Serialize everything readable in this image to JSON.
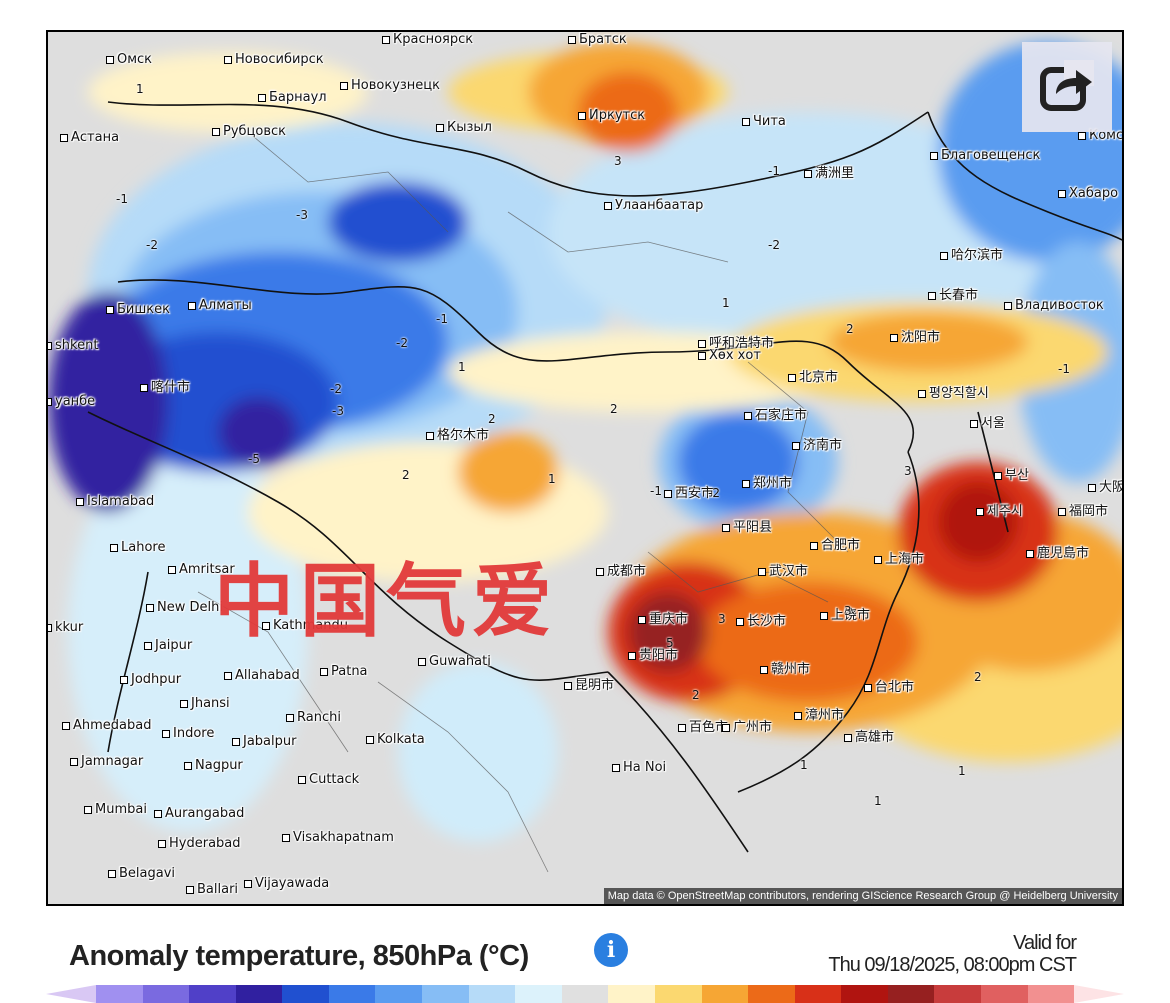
{
  "map": {
    "attribution": "Map data © OpenStreetMap contributors, rendering GIScience Research Group @ Heidelberg University",
    "watermark": "中国气爱",
    "cities": [
      {
        "name": "Омск"
      },
      {
        "name": "Новосибирск"
      },
      {
        "name": "Красноярск"
      },
      {
        "name": "Братск"
      },
      {
        "name": "Барнаул"
      },
      {
        "name": "Новокузнецк"
      },
      {
        "name": "Иркутск"
      },
      {
        "name": "Астана"
      },
      {
        "name": "Рубцовск"
      },
      {
        "name": "Кызыл"
      },
      {
        "name": "Чита"
      },
      {
        "name": "Благовещенск"
      },
      {
        "name": "满洲里"
      },
      {
        "name": "Хабаро"
      },
      {
        "name": "Улаанбаатар"
      },
      {
        "name": "哈尔滨市"
      },
      {
        "name": "长春市"
      },
      {
        "name": "Владивосток"
      },
      {
        "name": "Бишкек"
      },
      {
        "name": "Алматы"
      },
      {
        "name": "shkent"
      },
      {
        "name": "呼和浩特市"
      },
      {
        "name": "Хөх хот"
      },
      {
        "name": "沈阳市"
      },
      {
        "name": "北京市"
      },
      {
        "name": "평양직할시"
      },
      {
        "name": "喀什市"
      },
      {
        "name": "уанбе"
      },
      {
        "name": "石家庄市"
      },
      {
        "name": "格尔木市"
      },
      {
        "name": "济南市"
      },
      {
        "name": "서울"
      },
      {
        "name": "西安市"
      },
      {
        "name": "郑州市"
      },
      {
        "name": "부산"
      },
      {
        "name": "Islamabad"
      },
      {
        "name": "平阳县"
      },
      {
        "name": "제주시"
      },
      {
        "name": "福岡市"
      },
      {
        "name": "Lahore"
      },
      {
        "name": "成都市"
      },
      {
        "name": "合肥市"
      },
      {
        "name": "上海市"
      },
      {
        "name": "鹿児島市"
      },
      {
        "name": "Amritsar"
      },
      {
        "name": "武汉市"
      },
      {
        "name": "重庆市"
      },
      {
        "name": "New Delhi"
      },
      {
        "name": "长沙市"
      },
      {
        "name": "上饶市"
      },
      {
        "name": "Kathmandu"
      },
      {
        "name": "Jaipur"
      },
      {
        "name": "贵阳市"
      },
      {
        "name": "Guwahati"
      },
      {
        "name": "Patna"
      },
      {
        "name": "赣州市"
      },
      {
        "name": "Jodhpur"
      },
      {
        "name": "Allahabad"
      },
      {
        "name": "昆明市"
      },
      {
        "name": "台北市"
      },
      {
        "name": "Jhansi"
      },
      {
        "name": "Ahmedabad"
      },
      {
        "name": "Indore"
      },
      {
        "name": "Ranchi"
      },
      {
        "name": "漳州市"
      },
      {
        "name": "Jamnagar"
      },
      {
        "name": "Jabalpur"
      },
      {
        "name": "Kolkata"
      },
      {
        "name": "百色市"
      },
      {
        "name": "广州市"
      },
      {
        "name": "高雄市"
      },
      {
        "name": "Nagpur"
      },
      {
        "name": "Ha Noi"
      },
      {
        "name": "Cuttack"
      },
      {
        "name": "Mumbai"
      },
      {
        "name": "Aurangabad"
      },
      {
        "name": "Visakhapatnam"
      },
      {
        "name": "Hyderabad"
      },
      {
        "name": "Belagavi"
      },
      {
        "name": "Ballari"
      },
      {
        "name": "Vijayawada"
      },
      {
        "name": "kkur"
      },
      {
        "name": "Комс"
      },
      {
        "name": "大阪"
      }
    ],
    "isotherm_labels": [
      "1",
      "-1",
      "-2",
      "-3",
      "-5",
      "2",
      "3",
      "1",
      "-1",
      "-2",
      "2",
      "3",
      "-2",
      "-3",
      "1",
      "2",
      "-1",
      "-2",
      "1",
      "2",
      "3",
      "5",
      "3",
      "2",
      "1",
      "-1",
      "1",
      "2",
      "-1",
      "-2",
      "1"
    ]
  },
  "legend": {
    "title": "Anomaly temperature, 850hPa (°C)",
    "info_icon": "info-icon",
    "valid_label": "Valid for",
    "valid_time": "Thu 09/18/2025, 08:00pm CST",
    "colors": [
      "#a090f0",
      "#7a6ae0",
      "#5040c8",
      "#3020a0",
      "#2050d0",
      "#3a7ae8",
      "#5a9cf0",
      "#86bdf5",
      "#b6dbf8",
      "#dcf2fb",
      "#e0e0e0",
      "#fff3c8",
      "#fbd870",
      "#f6a634",
      "#ec6a18",
      "#d83018",
      "#b01410",
      "#962020",
      "#c83c3c",
      "#e06060",
      "#f29090"
    ]
  },
  "share": {
    "icon": "share-icon"
  }
}
